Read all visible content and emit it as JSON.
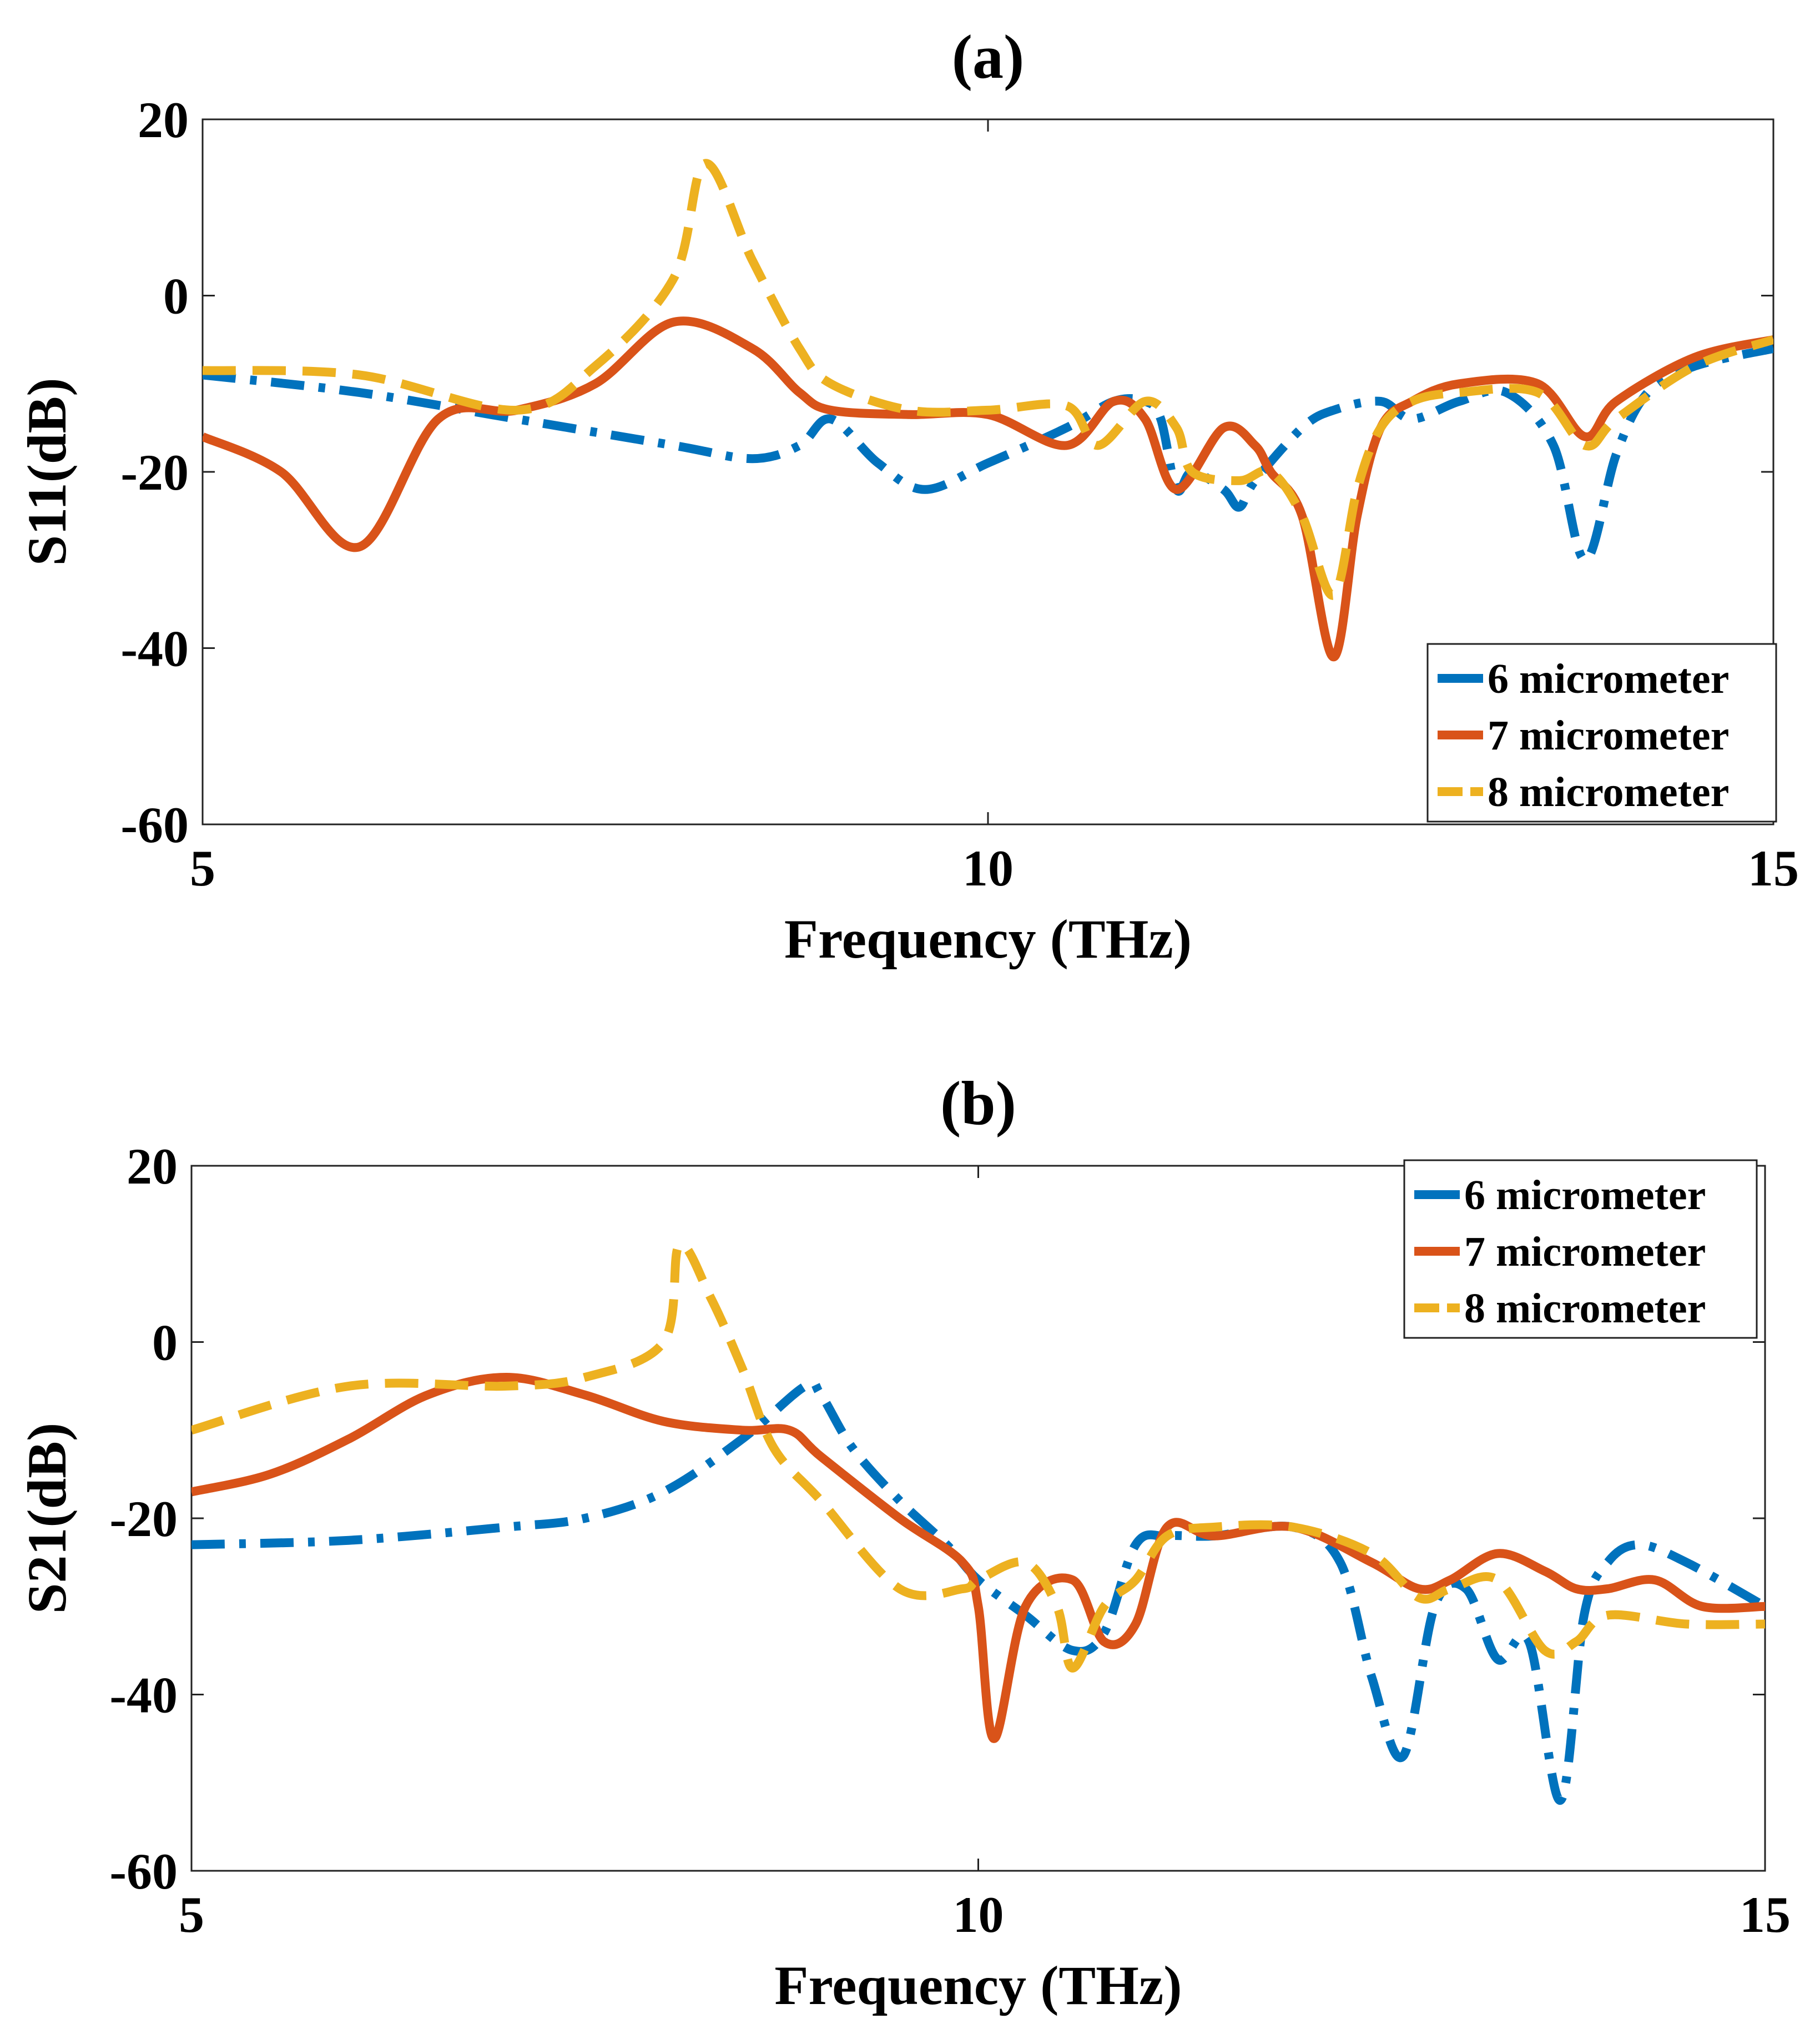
{
  "figure": {
    "description_free": true
  },
  "chart_data": [
    {
      "id": "a",
      "type": "line",
      "title": "(a)",
      "xlabel": "Frequency (THz)",
      "ylabel": "S11(dB)",
      "xlim": [
        5,
        15
      ],
      "ylim": [
        -60,
        20
      ],
      "xticks": [
        5,
        10,
        15
      ],
      "yticks": [
        20,
        0,
        -20,
        -40,
        -60
      ],
      "grid": false,
      "legend_position": "bottom-right",
      "series": [
        {
          "name": "6 micrometer",
          "color": "#0072BD",
          "style": "dashdot",
          "x": [
            5,
            6,
            7,
            8,
            8.5,
            8.8,
            9.0,
            9.3,
            9.6,
            10,
            10.5,
            10.8,
            11.0,
            11.1,
            11.2,
            11.3,
            11.5,
            11.6,
            11.7,
            12.0,
            12.2,
            12.5,
            12.7,
            13.0,
            13.3,
            13.6,
            13.8,
            14.0,
            14.2,
            14.5,
            15
          ],
          "values": [
            -9,
            -11,
            -14,
            -17,
            -18.5,
            -17,
            -14,
            -19,
            -22,
            -19,
            -15,
            -12,
            -12,
            -14,
            -22,
            -20,
            -22,
            -24,
            -21,
            -15,
            -13,
            -12,
            -14,
            -12,
            -11,
            -17,
            -30,
            -18,
            -11,
            -8,
            -6
          ]
        },
        {
          "name": "7 micrometer",
          "color": "#D95319",
          "style": "solid",
          "x": [
            5,
            5.5,
            6.0,
            6.5,
            7.0,
            7.5,
            8.0,
            8.5,
            8.8,
            9.0,
            9.5,
            10,
            10.5,
            10.8,
            11.0,
            11.2,
            11.5,
            11.7,
            11.8,
            12.0,
            12.2,
            12.35,
            12.5,
            12.7,
            13.0,
            13.5,
            13.8,
            14.0,
            14.5,
            15
          ],
          "values": [
            -16,
            -20,
            -28.5,
            -14,
            -13,
            -10,
            -3,
            -6,
            -11,
            -13,
            -13.5,
            -13.5,
            -17,
            -12,
            -14,
            -22,
            -15,
            -17,
            -20,
            -25,
            -41,
            -25,
            -15,
            -12,
            -10,
            -10,
            -16,
            -12,
            -7,
            -5
          ]
        },
        {
          "name": "8 micrometer",
          "color": "#EDB120",
          "style": "dashed",
          "x": [
            5,
            6.0,
            7.0,
            7.5,
            8.0,
            8.2,
            8.5,
            8.8,
            9.0,
            9.5,
            10.0,
            10.5,
            10.7,
            11.0,
            11.2,
            11.3,
            11.6,
            11.8,
            12.0,
            12.2,
            12.35,
            12.5,
            12.7,
            13.0,
            13.5,
            13.8,
            14.0,
            14.5,
            15
          ],
          "values": [
            -8.5,
            -9,
            -13,
            -8,
            2,
            15,
            4,
            -6,
            -10,
            -13,
            -13,
            -12.5,
            -17,
            -12,
            -15,
            -20,
            -21,
            -20,
            -25,
            -34,
            -22,
            -15,
            -12,
            -11,
            -11,
            -17,
            -14,
            -8,
            -5
          ]
        }
      ]
    },
    {
      "id": "b",
      "type": "line",
      "title": "(b)",
      "xlabel": "Frequency (THz)",
      "ylabel": "S21(dB)",
      "xlim": [
        5,
        15
      ],
      "ylim": [
        -60,
        20
      ],
      "xticks": [
        5,
        10,
        15
      ],
      "yticks": [
        20,
        0,
        -20,
        -40,
        -60
      ],
      "grid": false,
      "legend_position": "top-right",
      "series": [
        {
          "name": "6 micrometer",
          "color": "#0072BD",
          "style": "dashdot",
          "x": [
            5,
            6.0,
            7.0,
            7.5,
            8.0,
            8.5,
            8.9,
            9.0,
            9.2,
            9.5,
            9.8,
            10.0,
            10.3,
            10.6,
            10.8,
            11.0,
            11.2,
            11.5,
            12.0,
            12.3,
            12.5,
            12.7,
            12.9,
            13.1,
            13.3,
            13.5,
            13.7,
            13.85,
            14.0,
            14.2,
            14.5,
            15
          ],
          "values": [
            -23,
            -22.5,
            -21,
            -20,
            -17,
            -11,
            -5,
            -6,
            -12,
            -18,
            -23,
            -27,
            -31,
            -35,
            -33,
            -23,
            -22,
            -22,
            -21,
            -25,
            -38,
            -47,
            -30,
            -28,
            -36,
            -34,
            -52,
            -31,
            -25,
            -23,
            -25,
            -30
          ]
        },
        {
          "name": "7 micrometer",
          "color": "#D95319",
          "style": "solid",
          "x": [
            5,
            5.5,
            6.0,
            6.5,
            7.0,
            7.5,
            8.0,
            8.5,
            8.8,
            9.0,
            9.5,
            9.9,
            10.0,
            10.1,
            10.3,
            10.6,
            10.8,
            11.0,
            11.2,
            11.5,
            12.0,
            12.5,
            12.8,
            13.0,
            13.3,
            13.6,
            13.8,
            14.0,
            14.3,
            14.6,
            15
          ],
          "values": [
            -17,
            -15,
            -11,
            -6,
            -4,
            -6,
            -9,
            -10,
            -10,
            -13,
            -20,
            -25,
            -30,
            -45,
            -30,
            -27,
            -34,
            -32,
            -21,
            -22,
            -21,
            -25,
            -28,
            -27,
            -24,
            -26,
            -28,
            -28,
            -27,
            -30,
            -30
          ]
        },
        {
          "name": "8 micrometer",
          "color": "#EDB120",
          "style": "dashed",
          "x": [
            5,
            6.0,
            7.0,
            7.5,
            8.0,
            8.1,
            8.3,
            8.5,
            8.7,
            9.0,
            9.5,
            9.9,
            10.0,
            10.3,
            10.5,
            10.6,
            10.8,
            11.0,
            11.2,
            11.5,
            12.0,
            12.5,
            12.8,
            13.0,
            13.3,
            13.6,
            13.8,
            14.0,
            14.5,
            15
          ],
          "values": [
            -10,
            -5,
            -5,
            -4,
            0,
            11,
            5,
            -3,
            -12,
            -18,
            -28,
            -28,
            -27,
            -25,
            -30,
            -37,
            -30,
            -27,
            -22,
            -21,
            -21,
            -24,
            -29,
            -28,
            -27,
            -35,
            -34,
            -31,
            -32,
            -32
          ]
        }
      ]
    }
  ]
}
